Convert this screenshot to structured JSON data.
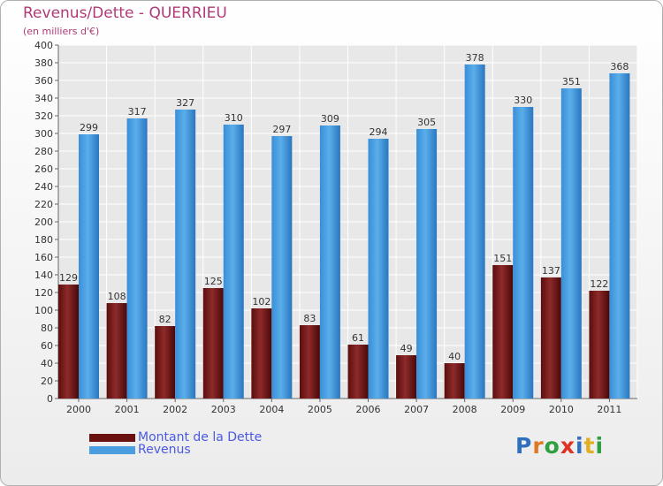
{
  "title": "Revenus/Dette - QUERRIEU",
  "subtitle": "(en milliers d'€)",
  "brand": {
    "text": "Proxiti",
    "letter_colors": [
      "#2e6fc0",
      "#e07820",
      "#2ea040",
      "#e03020",
      "#2e6fc0",
      "#e0b020",
      "#2ea040"
    ]
  },
  "chart_data": {
    "type": "bar",
    "categories": [
      "2000",
      "2001",
      "2002",
      "2003",
      "2004",
      "2005",
      "2006",
      "2007",
      "2008",
      "2009",
      "2010",
      "2011"
    ],
    "series": [
      {
        "name": "Montant de la Dette",
        "color": "#7a1a1a",
        "values": [
          129,
          108,
          82,
          125,
          102,
          83,
          61,
          49,
          40,
          151,
          137,
          122
        ]
      },
      {
        "name": "Revenus",
        "color": "#4a9ee0",
        "values": [
          299,
          317,
          327,
          310,
          297,
          309,
          294,
          305,
          378,
          330,
          351,
          368
        ]
      }
    ],
    "ylim": [
      0,
      400
    ],
    "ytick_step": 20,
    "yticks": [
      "0",
      "20",
      "40",
      "60",
      "80",
      "100",
      "120",
      "140",
      "160",
      "180",
      "200",
      "220",
      "240",
      "260",
      "280",
      "300",
      "320",
      "340",
      "360",
      "380",
      "400"
    ],
    "grid": true,
    "legend_position": "bottom-left"
  }
}
